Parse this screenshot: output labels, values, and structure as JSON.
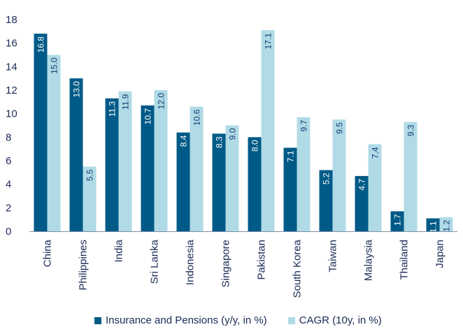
{
  "chart_data": {
    "type": "bar",
    "categories": [
      "China",
      "Philippines",
      "India",
      "Sri Lanka",
      "Indonesia",
      "Singapore",
      "Pakistan",
      "South Korea",
      "Taiwan",
      "Malaysia",
      "Thailand",
      "Japan"
    ],
    "series": [
      {
        "name": "Insurance and Pensions (y/y, in %)",
        "values": [
          16.8,
          13.0,
          11.3,
          10.7,
          8.4,
          8.3,
          8.0,
          7.1,
          5.2,
          4.7,
          1.7,
          1.1
        ],
        "labels": [
          "16.8",
          "13.0",
          "11.3",
          "10.7",
          "8.4",
          "8.3",
          "8.0",
          "7.1",
          "5.2",
          "4.7",
          "1.7",
          "1.1"
        ],
        "color": "#005a87",
        "label_color": "#ffffff"
      },
      {
        "name": "CAGR (10y, in %)",
        "values": [
          15.0,
          5.5,
          11.9,
          12.0,
          10.6,
          9.0,
          17.1,
          9.7,
          9.5,
          7.4,
          9.3,
          1.2
        ],
        "labels": [
          "15.0",
          "5.5",
          "11.9",
          "12.0",
          "10.6",
          "9.0",
          "17.1",
          "9.7",
          "9.5",
          "7.4",
          "9.3",
          "1.2"
        ],
        "color": "#b0dbe6",
        "label_color": "#123a73"
      }
    ],
    "yticks": [
      "0",
      "2",
      "4",
      "6",
      "8",
      "10",
      "12",
      "14",
      "16",
      "18"
    ],
    "ylim": [
      0,
      18
    ],
    "title": "",
    "xlabel": "",
    "ylabel": "",
    "grid": false,
    "legend_position": "bottom"
  }
}
